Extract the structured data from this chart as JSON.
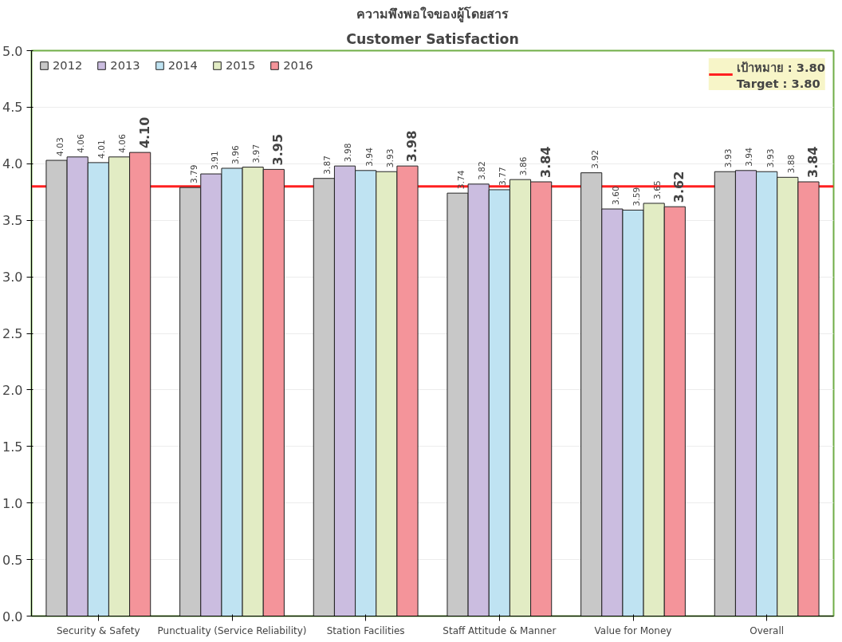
{
  "chart_data": {
    "type": "bar",
    "title": "ความพึงพอใจของผู้โดยสาร",
    "subtitle": "Customer Satisfaction",
    "categories": [
      "Security & Safety",
      "Punctuality (Service Reliability)",
      "Station Facilities",
      "Staff Attitude & Manner",
      "Value for Money",
      "Overall"
    ],
    "series": [
      {
        "name": "2012",
        "color": "#c8c8c8",
        "values": [
          4.03,
          3.79,
          3.87,
          3.74,
          3.92,
          3.93
        ],
        "value_labels": [
          "4.03",
          "3.79",
          "3.87",
          "3.74",
          "3.92",
          "3.93"
        ]
      },
      {
        "name": "2013",
        "color": "#cbbde0",
        "values": [
          4.06,
          3.91,
          3.98,
          3.82,
          3.6,
          3.94
        ],
        "value_labels": [
          "4.06",
          "3.91",
          "3.98",
          "3.82",
          "3.60",
          "3.94"
        ]
      },
      {
        "name": "2014",
        "color": "#bfe3f2",
        "values": [
          4.01,
          3.96,
          3.94,
          3.77,
          3.59,
          3.93
        ],
        "value_labels": [
          "4.01",
          "3.96",
          "3.94",
          "3.77",
          "3.59",
          "3.93"
        ]
      },
      {
        "name": "2015",
        "color": "#e2ecc4",
        "values": [
          4.06,
          3.97,
          3.93,
          3.86,
          3.65,
          3.88
        ],
        "value_labels": [
          "4.06",
          "3.97",
          "3.93",
          "3.86",
          "3.65",
          "3.88"
        ]
      },
      {
        "name": "2016",
        "color": "#f4949a",
        "values": [
          4.1,
          3.95,
          3.98,
          3.84,
          3.62,
          3.84
        ],
        "value_labels": [
          "4.10",
          "3.95",
          "3.98",
          "3.84",
          "3.62",
          "3.84"
        ]
      }
    ],
    "ylim": [
      0,
      5
    ],
    "yticks": [
      "0.0",
      "0.5",
      "1.0",
      "1.5",
      "2.0",
      "2.5",
      "3.0",
      "3.5",
      "4.0",
      "4.5",
      "5.0"
    ],
    "ref_lines": [
      {
        "axis": "y",
        "value": 3.8,
        "label": "เป้าหมาย : 3.80\nTarget : 3.80",
        "color": "#ff2020"
      }
    ],
    "grid": "y",
    "legend": "top left"
  }
}
